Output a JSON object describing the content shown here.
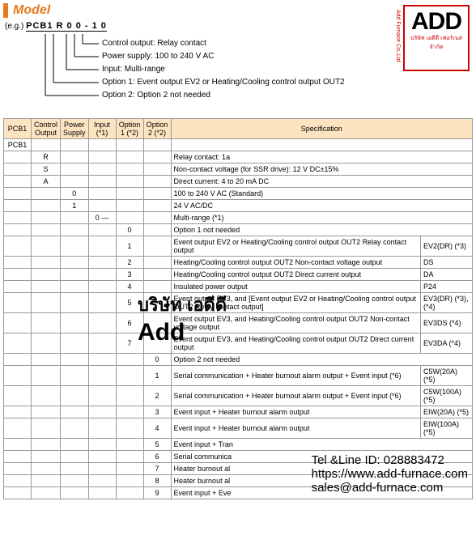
{
  "header": {
    "title": "Model"
  },
  "example": {
    "prefix": "(e.g.)",
    "code": "PCB1 R 0 0 - 1 0",
    "lines": [
      "Control output: Relay contact",
      "Power supply: 100 to 240 V AC",
      "Input: Multi-range",
      "Option 1: Event output EV2 or Heating/Cooling control output OUT2",
      "Option 2: Option 2 not needed"
    ]
  },
  "logo": {
    "big": "ADD",
    "thai": "บริษัท เอดีดี เฟอร์เนส จำกัด",
    "side": "Add Furnace Co.,Ltd"
  },
  "watermark": {
    "thai": "บริษัท เอดีดี",
    "add": "Add"
  },
  "table": {
    "headers": [
      "PCB1",
      "Control\nOutput",
      "Power\nSupply",
      "Input\n(*1)",
      "Option 1\n(*2)",
      "Option 2\n(*2)",
      "Specification"
    ],
    "rows": [
      {
        "c": [
          "PCB1",
          "",
          "",
          "",
          "",
          "",
          "",
          ""
        ]
      },
      {
        "c": [
          "",
          "R",
          "",
          "",
          "",
          "",
          "Relay contact: 1a",
          ""
        ]
      },
      {
        "c": [
          "",
          "S",
          "",
          "",
          "",
          "",
          "Non-contact voltage (for SSR drive): 12 V DC±15%",
          ""
        ]
      },
      {
        "c": [
          "",
          "A",
          "",
          "",
          "",
          "",
          "Direct current: 4 to 20 mA DC",
          ""
        ]
      },
      {
        "c": [
          "",
          "",
          "0",
          "",
          "",
          "",
          "100 to 240 V AC (Standard)",
          ""
        ]
      },
      {
        "c": [
          "",
          "",
          "1",
          "",
          "",
          "",
          "24 V AC/DC",
          ""
        ]
      },
      {
        "c": [
          "",
          "",
          "",
          "0 —",
          "",
          "",
          "Multi-range (*1)",
          ""
        ]
      },
      {
        "c": [
          "",
          "",
          "",
          "",
          "0",
          "",
          "Option 1 not needed",
          ""
        ]
      },
      {
        "c": [
          "",
          "",
          "",
          "",
          "1",
          "",
          "Event output EV2 or Heating/Cooling control output OUT2 Relay contact output",
          "EV2(DR) (*3)"
        ]
      },
      {
        "c": [
          "",
          "",
          "",
          "",
          "2",
          "",
          "Heating/Cooling control output OUT2\nNon-contact voltage output",
          "DS"
        ]
      },
      {
        "c": [
          "",
          "",
          "",
          "",
          "3",
          "",
          "Heating/Cooling control output OUT2\nDirect current output",
          "DA"
        ]
      },
      {
        "c": [
          "",
          "",
          "",
          "",
          "4",
          "",
          "Insulated power output",
          "P24"
        ]
      },
      {
        "c": [
          "",
          "",
          "",
          "",
          "5",
          "",
          "Event output EV3, and\n[Event output EV2 or Heating/Cooling control output OUT2 Relay contact output]",
          "EV3(DR) (*3), (*4)"
        ]
      },
      {
        "c": [
          "",
          "",
          "",
          "",
          "6",
          "",
          "Event output EV3, and Heating/Cooling control output OUT2 Non-contact voltage output",
          "EV3DS (*4)"
        ]
      },
      {
        "c": [
          "",
          "",
          "",
          "",
          "7",
          "",
          "Event output EV3, and Heating/Cooling control output OUT2 Direct current output",
          "EV3DA (*4)"
        ]
      },
      {
        "c": [
          "",
          "",
          "",
          "",
          "",
          "0",
          "Option 2 not needed",
          ""
        ]
      },
      {
        "c": [
          "",
          "",
          "",
          "",
          "",
          "1",
          "Serial communication + Heater burnout alarm output + Event input (*6)",
          "C5W(20A) (*5)"
        ]
      },
      {
        "c": [
          "",
          "",
          "",
          "",
          "",
          "2",
          "Serial communication + Heater burnout alarm output + Event input (*6)",
          "C5W(100A) (*5)"
        ]
      },
      {
        "c": [
          "",
          "",
          "",
          "",
          "",
          "3",
          "Event input + Heater burnout alarm output",
          "EIW(20A) (*5)"
        ]
      },
      {
        "c": [
          "",
          "",
          "",
          "",
          "",
          "4",
          "Event input + Heater burnout alarm output",
          "EIW(100A) (*5)"
        ]
      },
      {
        "c": [
          "",
          "",
          "",
          "",
          "",
          "5",
          "Event input + Tran",
          ""
        ]
      },
      {
        "c": [
          "",
          "",
          "",
          "",
          "",
          "6",
          "Serial communica",
          ""
        ]
      },
      {
        "c": [
          "",
          "",
          "",
          "",
          "",
          "7",
          "Heater burnout al",
          ""
        ]
      },
      {
        "c": [
          "",
          "",
          "",
          "",
          "",
          "8",
          "Heater burnout al",
          ""
        ]
      },
      {
        "c": [
          "",
          "",
          "",
          "",
          "",
          "9",
          "Event input + Eve",
          ""
        ]
      }
    ]
  },
  "contact": {
    "line1": "Tel &Line ID: 028883472",
    "line2": "https://www.add-furnace.com",
    "line3": "sales@add-furnace.com"
  },
  "colors": {
    "accent": "#e67a1f",
    "headerBg": "#fde4c1",
    "border": "#999",
    "logoBorder": "#c00"
  }
}
